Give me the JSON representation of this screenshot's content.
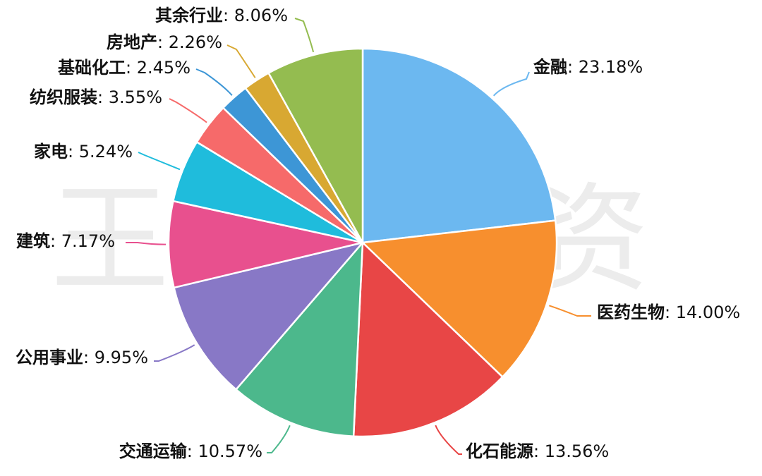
{
  "watermark": "王博雅投资",
  "label_separator": ": ",
  "chart_data": {
    "type": "pie",
    "start_angle_deg": 0,
    "direction": "clockwise",
    "legend": "none",
    "slices": [
      {
        "label": "金融",
        "value": 23.18,
        "display": "23.18%",
        "color": "#6cb8f0"
      },
      {
        "label": "医药生物",
        "value": 14.0,
        "display": "14.00%",
        "color": "#f78f2e"
      },
      {
        "label": "化石能源",
        "value": 13.56,
        "display": "13.56%",
        "color": "#e84646"
      },
      {
        "label": "交通运输",
        "value": 10.57,
        "display": "10.57%",
        "color": "#4cb88c"
      },
      {
        "label": "公用事业",
        "value": 9.95,
        "display": "9.95%",
        "color": "#8878c6"
      },
      {
        "label": "建筑",
        "value": 7.17,
        "display": "7.17%",
        "color": "#e8508e"
      },
      {
        "label": "家电",
        "value": 5.24,
        "display": "5.24%",
        "color": "#1fbcdc"
      },
      {
        "label": "纺织服装",
        "value": 3.55,
        "display": "3.55%",
        "color": "#f66a6a"
      },
      {
        "label": "基础化工",
        "value": 2.45,
        "display": "2.45%",
        "color": "#3d96d6"
      },
      {
        "label": "房地产",
        "value": 2.26,
        "display": "2.26%",
        "color": "#d8a832"
      },
      {
        "label": "其余行业",
        "value": 8.06,
        "display": "8.06%",
        "color": "#94bc50"
      }
    ]
  }
}
